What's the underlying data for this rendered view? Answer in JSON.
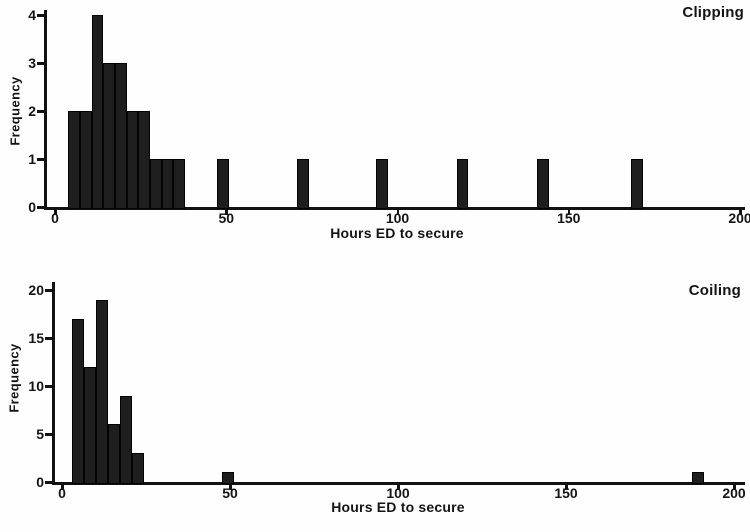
{
  "figure": {
    "background": "#ffffff",
    "bar_color": "#1e1e1e",
    "axis_color": "#121212"
  },
  "chart_data": [
    {
      "type": "bar",
      "subtype": "histogram",
      "title": "Clipping",
      "xlabel": "Hours ED to secure",
      "ylabel": "Frequency",
      "xlim": [
        0,
        200
      ],
      "ylim": [
        0,
        4
      ],
      "x_ticks": [
        0,
        50,
        100,
        150,
        200
      ],
      "y_ticks": [
        0,
        1,
        2,
        3,
        4
      ],
      "grid": false,
      "legend": false,
      "bars": [
        {
          "x": 3.9,
          "w": 3.4,
          "f": 2
        },
        {
          "x": 7.3,
          "w": 3.4,
          "f": 2
        },
        {
          "x": 10.7,
          "w": 3.4,
          "f": 4
        },
        {
          "x": 14.1,
          "w": 3.4,
          "f": 3
        },
        {
          "x": 17.5,
          "w": 3.4,
          "f": 3
        },
        {
          "x": 20.9,
          "w": 3.4,
          "f": 2
        },
        {
          "x": 24.3,
          "w": 3.4,
          "f": 2
        },
        {
          "x": 27.7,
          "w": 3.4,
          "f": 1
        },
        {
          "x": 31.1,
          "w": 3.4,
          "f": 1
        },
        {
          "x": 34.5,
          "w": 3.4,
          "f": 1
        },
        {
          "x": 47.3,
          "w": 3.4,
          "f": 1
        },
        {
          "x": 70.8,
          "w": 3.4,
          "f": 1
        },
        {
          "x": 93.8,
          "w": 3.4,
          "f": 1
        },
        {
          "x": 117.3,
          "w": 3.4,
          "f": 1
        },
        {
          "x": 140.8,
          "w": 3.4,
          "f": 1
        },
        {
          "x": 168.3,
          "w": 3.4,
          "f": 1
        }
      ]
    },
    {
      "type": "bar",
      "subtype": "histogram",
      "title": "Coiling",
      "xlabel": "Hours ED to secure",
      "ylabel": "Frequency",
      "xlim": [
        0,
        200
      ],
      "ylim": [
        0,
        20
      ],
      "x_ticks": [
        0,
        50,
        100,
        150,
        200
      ],
      "y_ticks": [
        0,
        5,
        10,
        15,
        20
      ],
      "grid": false,
      "legend": false,
      "bars": [
        {
          "x": 2.9,
          "w": 3.6,
          "f": 17
        },
        {
          "x": 6.5,
          "w": 3.6,
          "f": 12
        },
        {
          "x": 10.1,
          "w": 3.6,
          "f": 19
        },
        {
          "x": 13.7,
          "w": 3.6,
          "f": 6
        },
        {
          "x": 17.3,
          "w": 3.6,
          "f": 9
        },
        {
          "x": 20.9,
          "w": 3.6,
          "f": 3
        },
        {
          "x": 47.7,
          "w": 3.4,
          "f": 1
        },
        {
          "x": 187.6,
          "w": 3.4,
          "f": 1
        }
      ]
    }
  ]
}
